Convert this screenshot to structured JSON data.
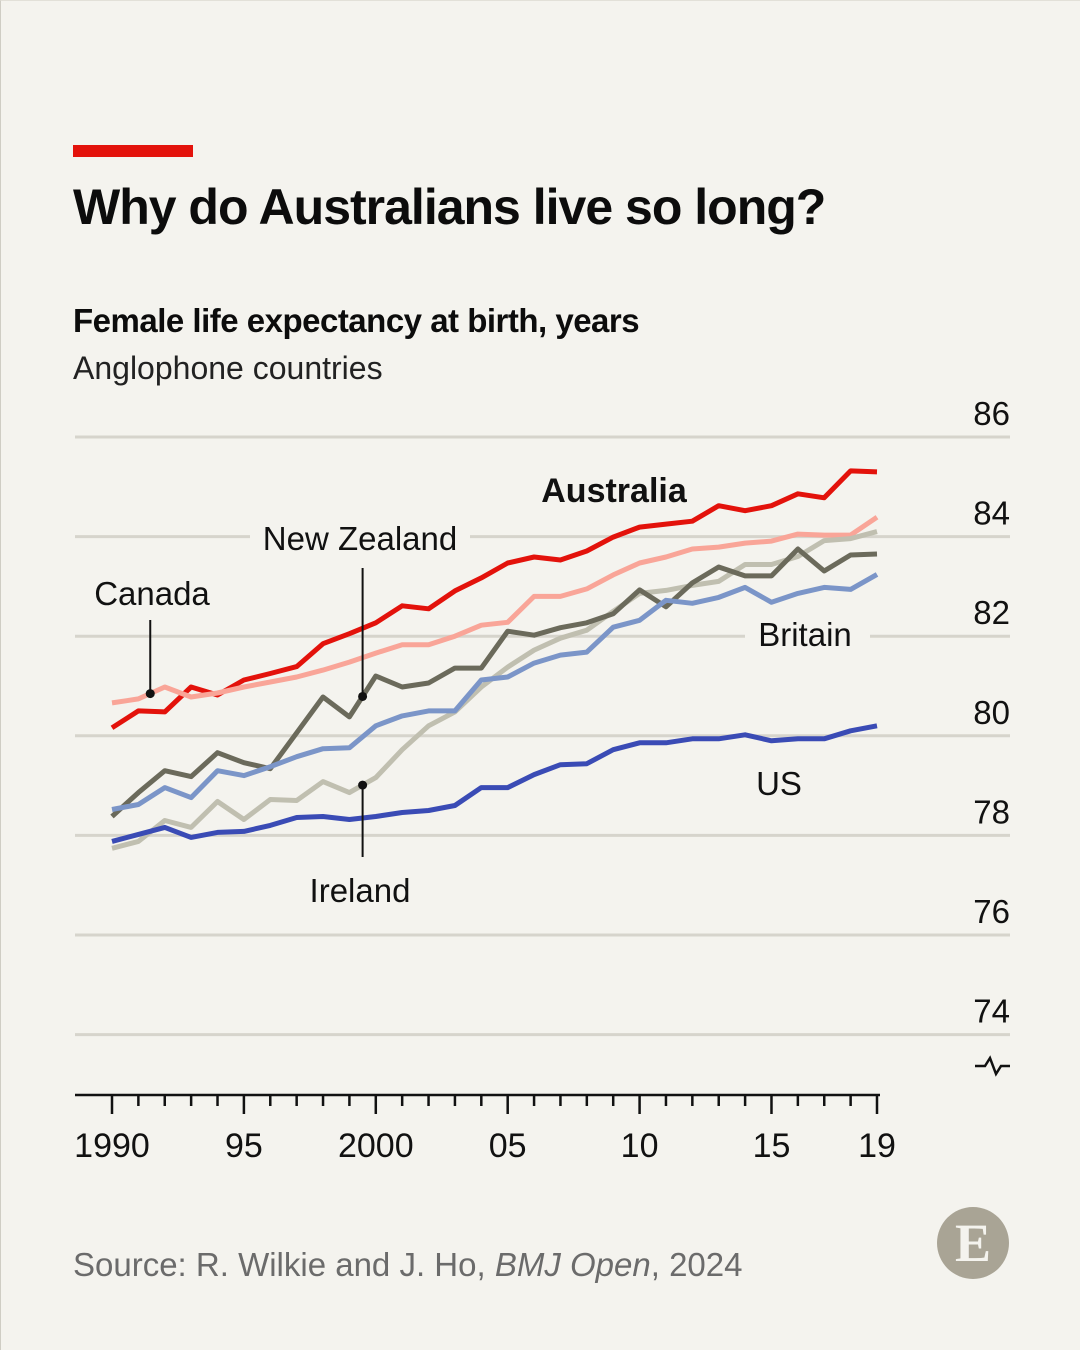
{
  "header": {
    "title": "Why do Australians live so long?",
    "subtitle": "Female life expectancy at birth, years",
    "description": "Anglophone countries",
    "accent_color": "#e3120b"
  },
  "chart_data": {
    "type": "line",
    "title": "Why do Australians live so long?",
    "ylabel": "Female life expectancy at birth, years",
    "ylim": [
      74,
      86
    ],
    "y_ticks": [
      "74",
      "76",
      "78",
      "80",
      "82",
      "84",
      "86"
    ],
    "y_axis_break": true,
    "xlim": [
      1990,
      2019
    ],
    "x_ticks": [
      {
        "year": 1990,
        "label": "1990"
      },
      {
        "year": 1995,
        "label": "95"
      },
      {
        "year": 2000,
        "label": "2000"
      },
      {
        "year": 2005,
        "label": "05"
      },
      {
        "year": 2010,
        "label": "10"
      },
      {
        "year": 2015,
        "label": "15"
      },
      {
        "year": 2019,
        "label": "19"
      }
    ],
    "grid": true,
    "x": [
      1990,
      1991,
      1992,
      1993,
      1994,
      1995,
      1996,
      1997,
      1998,
      1999,
      2000,
      2001,
      2002,
      2003,
      2004,
      2005,
      2006,
      2007,
      2008,
      2009,
      2010,
      2011,
      2012,
      2013,
      2014,
      2015,
      2016,
      2017,
      2018,
      2019
    ],
    "series": [
      {
        "name": "Australia",
        "color": "#e3120b",
        "bold_label": true,
        "values": [
          80.16,
          80.5,
          80.48,
          80.98,
          80.82,
          81.12,
          81.25,
          81.39,
          81.85,
          82.05,
          82.27,
          82.61,
          82.55,
          82.91,
          83.17,
          83.47,
          83.59,
          83.53,
          83.71,
          83.99,
          84.19,
          84.25,
          84.31,
          84.62,
          84.52,
          84.62,
          84.86,
          84.78,
          85.32,
          85.3
        ]
      },
      {
        "name": "Canada",
        "color": "#f9a598",
        "values": [
          80.66,
          80.74,
          80.98,
          80.78,
          80.86,
          80.98,
          81.08,
          81.18,
          81.32,
          81.48,
          81.66,
          81.83,
          81.83,
          82.0,
          82.22,
          82.28,
          82.8,
          82.8,
          82.95,
          83.23,
          83.47,
          83.59,
          83.75,
          83.79,
          83.87,
          83.91,
          84.05,
          84.03,
          84.03,
          84.39
        ]
      },
      {
        "name": "Ireland",
        "color": "#c0bfb0",
        "values": [
          77.74,
          77.88,
          78.3,
          78.16,
          78.68,
          78.32,
          78.72,
          78.7,
          79.08,
          78.86,
          79.16,
          79.72,
          80.2,
          80.48,
          80.98,
          81.38,
          81.72,
          81.96,
          82.12,
          82.5,
          82.86,
          82.92,
          83.02,
          83.1,
          83.44,
          83.44,
          83.6,
          83.92,
          83.96,
          84.1
        ]
      },
      {
        "name": "New Zealand",
        "color": "#6b6a5b",
        "values": [
          78.38,
          78.86,
          79.3,
          79.18,
          79.66,
          79.46,
          79.34,
          80.06,
          80.78,
          80.38,
          81.2,
          80.98,
          81.06,
          81.36,
          81.36,
          82.1,
          82.02,
          82.17,
          82.27,
          82.45,
          82.93,
          82.59,
          83.07,
          83.39,
          83.21,
          83.21,
          83.75,
          83.31,
          83.63,
          83.65
        ]
      },
      {
        "name": "Britain",
        "color": "#7b95c8",
        "values": [
          78.52,
          78.62,
          78.96,
          78.76,
          79.3,
          79.2,
          79.38,
          79.58,
          79.74,
          79.76,
          80.2,
          80.4,
          80.5,
          80.5,
          81.12,
          81.18,
          81.46,
          81.62,
          81.68,
          82.18,
          82.32,
          82.72,
          82.66,
          82.78,
          82.98,
          82.68,
          82.86,
          82.98,
          82.94,
          83.24
        ]
      },
      {
        "name": "US",
        "color": "#3a4bb5",
        "values": [
          77.88,
          78.02,
          78.16,
          77.96,
          78.06,
          78.08,
          78.2,
          78.36,
          78.38,
          78.32,
          78.38,
          78.46,
          78.5,
          78.6,
          78.96,
          78.96,
          79.22,
          79.42,
          79.44,
          79.72,
          79.86,
          79.86,
          79.94,
          79.94,
          80.02,
          79.9,
          79.94,
          79.94,
          80.1,
          80.2
        ]
      }
    ]
  },
  "footer": {
    "source_prefix": "Source: R. Wilkie and J. Ho, ",
    "source_journal": "BMJ Open",
    "source_suffix": ", 2024",
    "logo_letter": "E"
  }
}
